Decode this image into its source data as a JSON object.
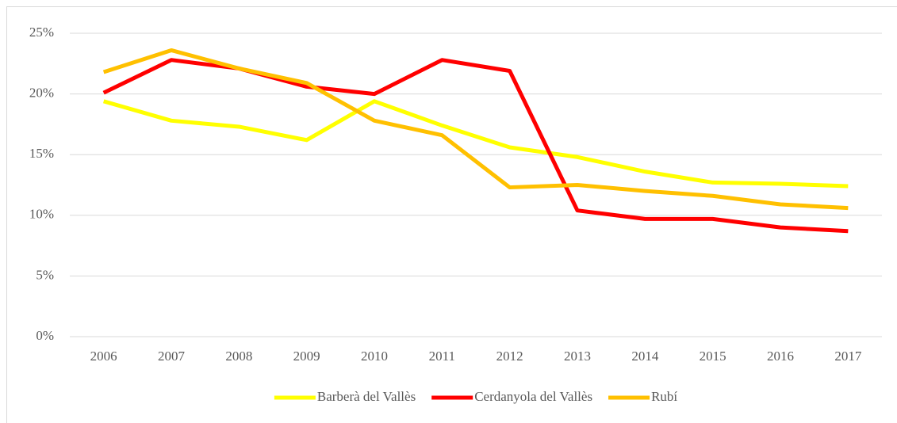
{
  "chart_data": {
    "type": "line",
    "categories": [
      "2006",
      "2007",
      "2008",
      "2009",
      "2010",
      "2011",
      "2012",
      "2013",
      "2014",
      "2015",
      "2016",
      "2017"
    ],
    "series": [
      {
        "name": "Barberà del Vallès",
        "color": "#ffff00",
        "values": [
          19.4,
          17.8,
          17.3,
          16.2,
          19.4,
          17.4,
          15.6,
          14.8,
          13.6,
          12.7,
          12.6,
          12.4
        ]
      },
      {
        "name": "Cerdanyola del Vallès",
        "color": "#ff0000",
        "values": [
          20.1,
          22.8,
          22.1,
          20.6,
          20.0,
          22.8,
          21.9,
          10.4,
          9.7,
          9.7,
          9.0,
          8.7
        ]
      },
      {
        "name": "Rubí",
        "color": "#ffc000",
        "values": [
          21.8,
          23.6,
          22.1,
          20.9,
          17.8,
          16.6,
          12.3,
          12.5,
          12.0,
          11.6,
          10.9,
          10.6
        ]
      }
    ],
    "ylim": [
      0,
      25
    ],
    "yticks": [
      {
        "value": 0,
        "label": "0%"
      },
      {
        "value": 5,
        "label": "5%"
      },
      {
        "value": 10,
        "label": "10%"
      },
      {
        "value": 15,
        "label": "15%"
      },
      {
        "value": 20,
        "label": "20%"
      },
      {
        "value": 25,
        "label": "25%"
      }
    ],
    "grid": true,
    "legend": "bottom"
  }
}
